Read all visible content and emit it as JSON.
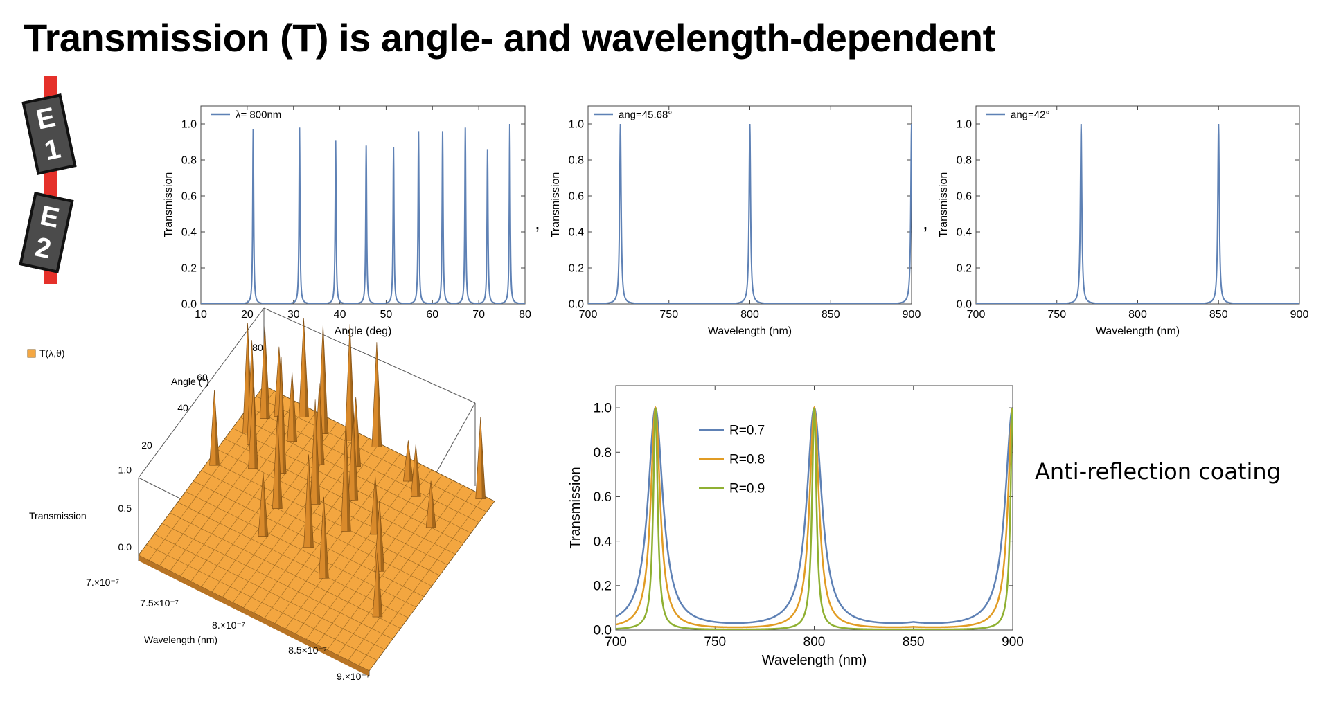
{
  "title": "Transmission (T) is angle- and wavelength-dependent",
  "badges": {
    "e1": [
      "E",
      "1"
    ],
    "e2": [
      "E",
      "2"
    ]
  },
  "separators": [
    ",",
    ","
  ],
  "coating_label": "Anti-reflection coating",
  "colors": {
    "blue": "#5e81b5",
    "orange": "#e19c24",
    "green": "#8fb032",
    "surface": "#f4a742"
  },
  "chart_data": [
    {
      "id": "angle",
      "type": "line",
      "xlabel": "Angle (deg)",
      "ylabel": "Transmission",
      "xlim": [
        10,
        80
      ],
      "ylim": [
        0,
        1.1
      ],
      "xticks": [
        10,
        20,
        30,
        40,
        50,
        60,
        70,
        80
      ],
      "yticks": [
        0.0,
        0.2,
        0.4,
        0.6,
        0.8,
        1.0
      ],
      "legend": "top-left",
      "series": [
        {
          "name": "λ= 800nm",
          "color": "#5e81b5",
          "peaks": [
            [
              21.3,
              0.97
            ],
            [
              31.3,
              0.98
            ],
            [
              39.1,
              0.91
            ],
            [
              45.7,
              0.88
            ],
            [
              51.6,
              0.87
            ],
            [
              57.0,
              0.96
            ],
            [
              62.2,
              0.96
            ],
            [
              67.1,
              0.98
            ],
            [
              71.9,
              0.86
            ],
            [
              76.7,
              1.0
            ]
          ]
        }
      ]
    },
    {
      "id": "wl45",
      "type": "line",
      "xlabel": "Wavelength (nm)",
      "ylabel": "Transmission",
      "xlim": [
        700,
        900
      ],
      "ylim": [
        0,
        1.1
      ],
      "xticks": [
        700,
        750,
        800,
        850,
        900
      ],
      "yticks": [
        0.0,
        0.2,
        0.4,
        0.6,
        0.8,
        1.0
      ],
      "legend": "top-left",
      "series": [
        {
          "name": "ang=45.68°",
          "color": "#5e81b5",
          "peaks": [
            [
              720,
              1.0
            ],
            [
              800,
              1.0
            ],
            [
              900,
              1.0
            ]
          ]
        }
      ]
    },
    {
      "id": "wl42",
      "type": "line",
      "xlabel": "Wavelength (nm)",
      "ylabel": "Transmission",
      "xlim": [
        700,
        900
      ],
      "ylim": [
        0,
        1.1
      ],
      "xticks": [
        700,
        750,
        800,
        850,
        900
      ],
      "yticks": [
        0.0,
        0.2,
        0.4,
        0.6,
        0.8,
        1.0
      ],
      "legend": "top-left",
      "series": [
        {
          "name": "ang=42°",
          "color": "#5e81b5",
          "peaks": [
            [
              765,
              1.0
            ],
            [
              850,
              1.0
            ]
          ]
        }
      ]
    },
    {
      "id": "surface",
      "type": "surface",
      "legend_label": "T(λ,θ)",
      "xlabel": "Wavelength (nm)",
      "ylabel": "Angle (°)",
      "zlabel": "Transmission",
      "xticks": [
        "7.×10⁻⁷",
        "7.5×10⁻⁷",
        "8.×10⁻⁷",
        "8.5×10⁻⁷",
        "9.×10⁻⁷"
      ],
      "yticks": [
        "20",
        "40",
        "60",
        "80"
      ],
      "zticks": [
        "0.0",
        "0.5",
        "1.0"
      ]
    },
    {
      "id": "finesse",
      "type": "line",
      "xlabel": "Wavelength (nm)",
      "ylabel": "Transmission",
      "xlim": [
        700,
        900
      ],
      "ylim": [
        0,
        1.1
      ],
      "xticks": [
        700,
        750,
        800,
        850,
        900
      ],
      "yticks": [
        0.0,
        0.2,
        0.4,
        0.6,
        0.8,
        1.0
      ],
      "legend": "top-left",
      "peaks_at": [
        720,
        800,
        900
      ],
      "series": [
        {
          "name": "R=0.7",
          "color": "#5e81b5",
          "R": 0.7
        },
        {
          "name": "R=0.8",
          "color": "#e19c24",
          "R": 0.8
        },
        {
          "name": "R=0.9",
          "color": "#8fb032",
          "R": 0.9
        }
      ]
    }
  ]
}
